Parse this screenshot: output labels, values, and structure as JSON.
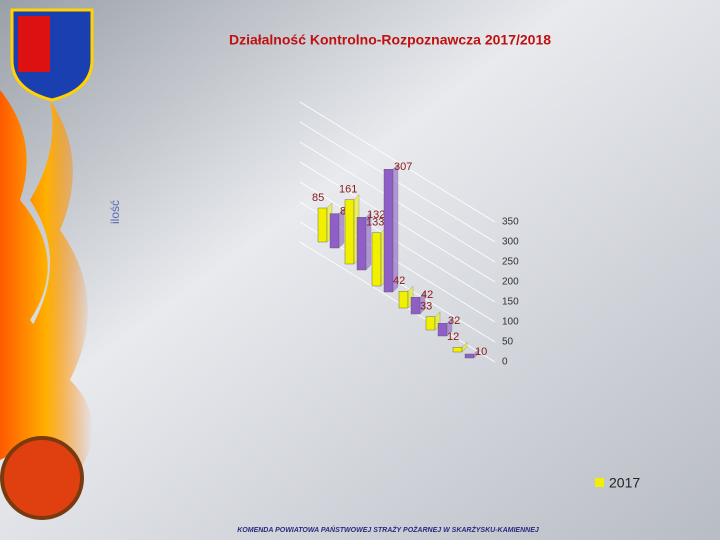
{
  "chart_data": {
    "type": "bar3d",
    "title": "Działalność Kontrolno-Rozpoznawcza 2017/2018",
    "y_label": "ilość",
    "footer": "KOMENDA POWIATOWA PAŃSTWOWEJ STRAŻY POŻARNEJ W SKARŻYSKU-KAMIENNEJ",
    "categories": [
      null,
      null,
      null,
      null,
      null,
      null
    ],
    "series": [
      {
        "name": "2017",
        "color": "#f0f000",
        "values": [
          85,
          161,
          133,
          42,
          33,
          12
        ]
      },
      {
        "color": "#8f5fc8",
        "values": [
          86,
          132,
          307,
          42,
          32,
          10
        ]
      }
    ],
    "ylim": [
      0,
      350
    ],
    "yticks": [
      0,
      50,
      100,
      150,
      200,
      250,
      300,
      350
    ],
    "grid": true
  }
}
